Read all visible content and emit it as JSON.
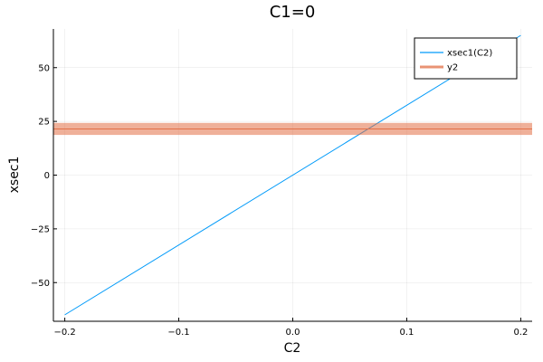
{
  "chart_data": {
    "type": "line",
    "title": "C1=0",
    "xlabel": "C2",
    "ylabel": "xsec1",
    "xlim": [
      -0.21,
      0.21
    ],
    "ylim": [
      -68,
      68
    ],
    "xticks": [
      -0.2,
      -0.1,
      0.0,
      0.1,
      0.2
    ],
    "xtick_labels": [
      "−0.2",
      "−0.1",
      "0.0",
      "0.1",
      "0.2"
    ],
    "yticks": [
      -50,
      -25,
      0,
      25,
      50
    ],
    "ytick_labels": [
      "−50",
      "−25",
      "0",
      "25",
      "50"
    ],
    "grid": true,
    "legend_position": "top-right",
    "series": [
      {
        "name": "xsec1(C2)",
        "kind": "line",
        "color": "#009af9",
        "x": [
          -0.2,
          0.2
        ],
        "y": [
          -65,
          65
        ]
      },
      {
        "name": "y2",
        "kind": "band",
        "color": "#e26f46",
        "center": 21.5,
        "lower": 18.7,
        "upper": 24.3
      }
    ]
  }
}
